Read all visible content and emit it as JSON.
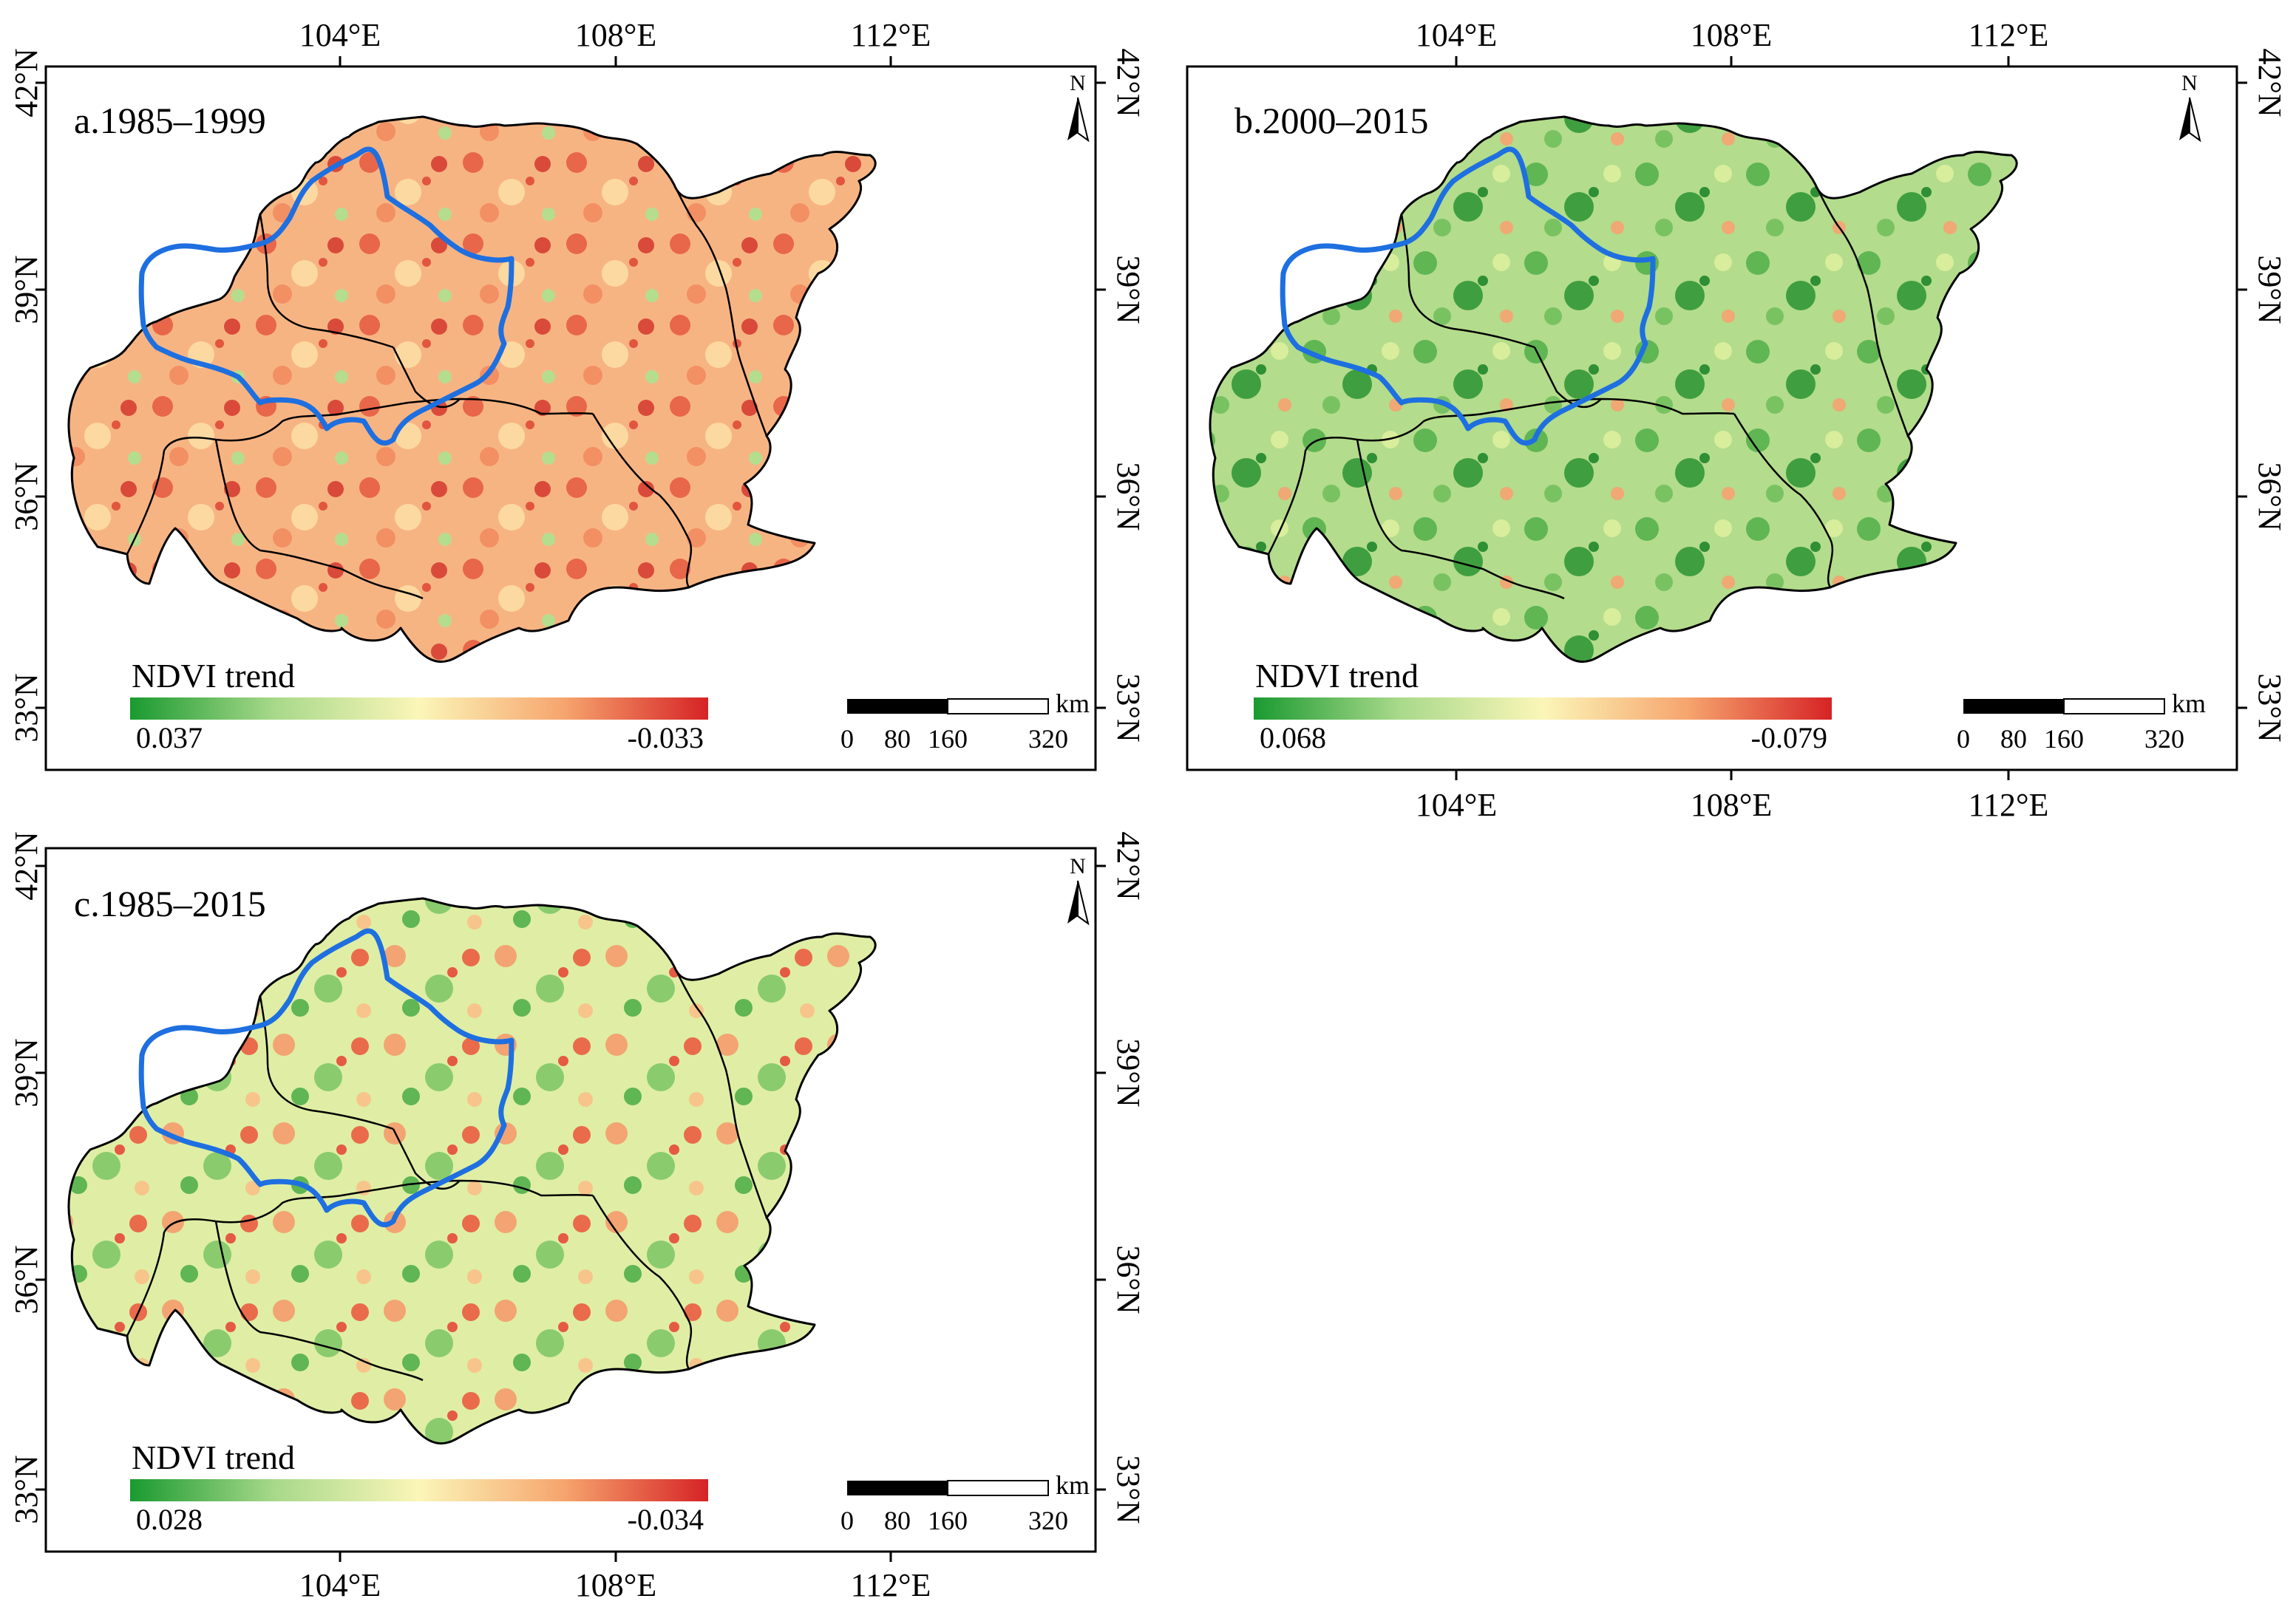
{
  "figure": {
    "map_type": "NDVI trend maps of the Loess Plateau",
    "colors": {
      "green": "#1a9a30",
      "light_green": "#a8d98a",
      "yellow": "#fbf6b8",
      "orange": "#f6a56e",
      "red": "#d62325",
      "study_area_outline": "#1e6fe0",
      "boundary": "#000000"
    }
  },
  "panels": [
    {
      "id": "a",
      "title": "a.1985–1999",
      "top_axis_labels": [
        "104°E",
        "108°E",
        "112°E"
      ],
      "bottom_axis_labels": [],
      "left_axis_labels": [
        "42°N",
        "39°N",
        "36°N",
        "33°N"
      ],
      "right_axis_labels": [
        "42°N",
        "39°N",
        "36°N",
        "33°N"
      ],
      "north_arrow": {
        "label": "N",
        "icon": "north-arrow-icon"
      },
      "legend": {
        "title": "NDVI trend",
        "max_label": "0.037",
        "min_label": "-0.033",
        "max_value": 0.037,
        "min_value": -0.033
      },
      "scale_bar": {
        "labels": [
          "0",
          "80",
          "160",
          "320"
        ],
        "unit": "km"
      },
      "greenness": 0.35
    },
    {
      "id": "b",
      "title": "b.2000–2015",
      "top_axis_labels": [
        "104°E",
        "108°E",
        "112°E"
      ],
      "bottom_axis_labels": [
        "104°E",
        "108°E",
        "112°E"
      ],
      "left_axis_labels": [],
      "right_axis_labels": [
        "42°N",
        "39°N",
        "36°N",
        "33°N"
      ],
      "north_arrow": {
        "label": "N",
        "icon": "north-arrow-icon"
      },
      "legend": {
        "title": "NDVI trend",
        "max_label": "0.068",
        "min_label": "-0.079",
        "max_value": 0.068,
        "min_value": -0.079
      },
      "scale_bar": {
        "labels": [
          "0",
          "80",
          "160",
          "320"
        ],
        "unit": "km"
      },
      "greenness": 0.8
    },
    {
      "id": "c",
      "title": "c.1985–2015",
      "top_axis_labels": [],
      "bottom_axis_labels": [
        "104°E",
        "108°E",
        "112°E"
      ],
      "left_axis_labels": [
        "42°N",
        "39°N",
        "36°N",
        "33°N"
      ],
      "right_axis_labels": [
        "42°N",
        "39°N",
        "36°N",
        "33°N"
      ],
      "north_arrow": {
        "label": "N",
        "icon": "north-arrow-icon"
      },
      "legend": {
        "title": "NDVI trend",
        "max_label": "0.028",
        "min_label": "-0.034",
        "max_value": 0.028,
        "min_value": -0.034
      },
      "scale_bar": {
        "labels": [
          "0",
          "80",
          "160",
          "320"
        ],
        "unit": "km"
      },
      "greenness": 0.55
    }
  ]
}
